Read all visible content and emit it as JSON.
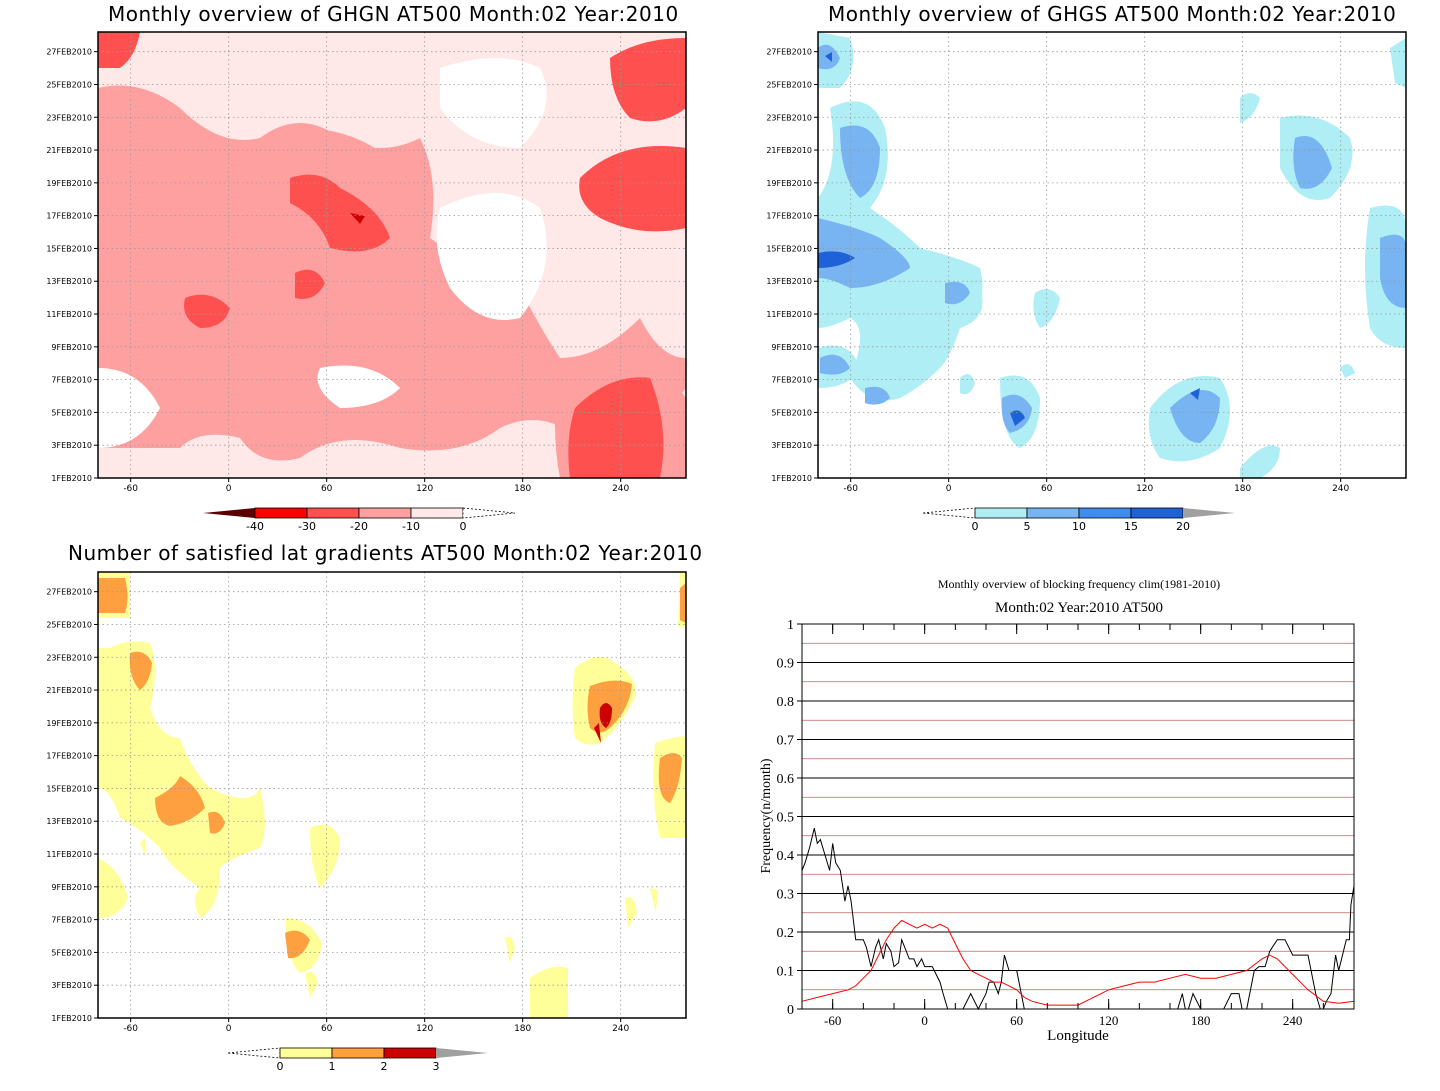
{
  "chart_data": [
    {
      "type": "heatmap",
      "title": "Monthly overview of GHGN AT500 Month:02 Year:2010",
      "x_ticks": [
        "-60",
        "0",
        "60",
        "120",
        "180",
        "240"
      ],
      "x_tick_values": [
        -60,
        0,
        60,
        120,
        180,
        240
      ],
      "xlim": [
        -80,
        280
      ],
      "y_ticks": [
        "1FEB2010",
        "3FEB2010",
        "5FEB2010",
        "7FEB2010",
        "9FEB2010",
        "11FEB2010",
        "13FEB2010",
        "15FEB2010",
        "17FEB2010",
        "19FEB2010",
        "21FEB2010",
        "23FEB2010",
        "25FEB2010",
        "27FEB2010"
      ],
      "ylim": [
        1,
        28.2
      ],
      "grid": true,
      "colorbar": {
        "levels": [
          "-40",
          "-30",
          "-20",
          "-10",
          "0"
        ],
        "colors": [
          "#5a0000",
          "#ff0000",
          "#ff5050",
          "#ffa0a0",
          "#ffe8e8",
          "#ffffff"
        ],
        "extend_low": true,
        "extend_high": true
      }
    },
    {
      "type": "heatmap",
      "title": "Monthly overview of GHGS AT500 Month:02 Year:2010",
      "x_ticks": [
        "-60",
        "0",
        "60",
        "120",
        "180",
        "240"
      ],
      "x_tick_values": [
        -60,
        0,
        60,
        120,
        180,
        240
      ],
      "xlim": [
        -80,
        280
      ],
      "y_ticks": [
        "1FEB2010",
        "3FEB2010",
        "5FEB2010",
        "7FEB2010",
        "9FEB2010",
        "11FEB2010",
        "13FEB2010",
        "15FEB2010",
        "17FEB2010",
        "19FEB2010",
        "21FEB2010",
        "23FEB2010",
        "25FEB2010",
        "27FEB2010"
      ],
      "ylim": [
        1,
        28.2
      ],
      "grid": true,
      "colorbar": {
        "levels": [
          "0",
          "5",
          "10",
          "15",
          "20"
        ],
        "colors": [
          "#ffffff",
          "#b0eef6",
          "#78b4f2",
          "#3f8cf0",
          "#1f62d8",
          "#a0a0a0"
        ],
        "extend_low": true,
        "extend_high": true
      }
    },
    {
      "type": "heatmap",
      "title": "Number of satisfied lat gradients AT500 Month:02 Year:2010",
      "x_ticks": [
        "-60",
        "0",
        "60",
        "120",
        "180",
        "240"
      ],
      "x_tick_values": [
        -60,
        0,
        60,
        120,
        180,
        240
      ],
      "xlim": [
        -80,
        280
      ],
      "y_ticks": [
        "1FEB2010",
        "3FEB2010",
        "5FEB2010",
        "7FEB2010",
        "9FEB2010",
        "11FEB2010",
        "13FEB2010",
        "15FEB2010",
        "17FEB2010",
        "19FEB2010",
        "21FEB2010",
        "23FEB2010",
        "25FEB2010",
        "27FEB2010"
      ],
      "ylim": [
        1,
        28.2
      ],
      "grid": true,
      "colorbar": {
        "levels": [
          "0",
          "1",
          "2",
          "3"
        ],
        "colors": [
          "#ffffff",
          "#ffff99",
          "#ffa040",
          "#cc0000",
          "#a0a0a0"
        ],
        "extend_low": true,
        "extend_high": true
      }
    },
    {
      "type": "line",
      "title": "Monthly overview of blocking frequency clim(1981-2010)",
      "subtitle": "Month:02 Year:2010  AT500",
      "xlabel": "Longitude",
      "ylabel": "Frequency(n/month)",
      "xlim": [
        -80,
        280
      ],
      "ylim": [
        0,
        1
      ],
      "x_ticks": [
        "-60",
        "0",
        "60",
        "120",
        "180",
        "240"
      ],
      "x_tick_values": [
        -60,
        0,
        60,
        120,
        180,
        240
      ],
      "y_ticks": [
        "0",
        "0.1",
        "0.2",
        "0.3",
        "0.4",
        "0.5",
        "0.6",
        "0.7",
        "0.8",
        "0.9",
        "1"
      ],
      "grid": true,
      "series": [
        {
          "color": "#000000",
          "x": [
            -80,
            -78,
            -75,
            -72,
            -70,
            -68,
            -65,
            -62,
            -60,
            -58,
            -55,
            -52,
            -50,
            -48,
            -45,
            -42,
            -40,
            -38,
            -35,
            -32,
            -30,
            -27,
            -25,
            -22,
            -20,
            -17,
            -15,
            -12,
            -10,
            -7,
            -5,
            -2,
            0,
            5,
            10,
            12,
            15,
            18,
            20,
            25,
            30,
            35,
            40,
            42,
            45,
            48,
            50,
            52,
            55,
            60,
            65,
            68,
            70,
            75,
            100,
            150,
            165,
            168,
            170,
            172,
            175,
            180,
            185,
            190,
            195,
            200,
            205,
            207,
            210,
            215,
            218,
            222,
            225,
            230,
            235,
            240,
            245,
            250,
            255,
            258,
            260,
            262,
            265,
            268,
            270,
            275,
            277,
            278,
            280
          ],
          "y": [
            0.36,
            0.38,
            0.42,
            0.47,
            0.43,
            0.44,
            0.4,
            0.36,
            0.43,
            0.38,
            0.36,
            0.28,
            0.32,
            0.28,
            0.18,
            0.18,
            0.18,
            0.16,
            0.11,
            0.16,
            0.18,
            0.13,
            0.17,
            0.15,
            0.11,
            0.12,
            0.18,
            0.15,
            0.13,
            0.13,
            0.11,
            0.13,
            0.11,
            0.11,
            0.07,
            0.04,
            0.0,
            0.0,
            0.0,
            0.0,
            0.04,
            0.0,
            0.04,
            0.07,
            0.07,
            0.04,
            0.07,
            0.14,
            0.1,
            0.1,
            0.0,
            0.0,
            0.0,
            0.0,
            0.0,
            0.0,
            0.0,
            0.04,
            0.0,
            0.0,
            0.04,
            0.0,
            0.0,
            0.0,
            0.0,
            0.04,
            0.04,
            0.0,
            0.0,
            0.1,
            0.11,
            0.11,
            0.15,
            0.18,
            0.18,
            0.14,
            0.14,
            0.14,
            0.04,
            0.0,
            0.0,
            0.02,
            0.04,
            0.14,
            0.1,
            0.18,
            0.18,
            0.27,
            0.32
          ]
        },
        {
          "color": "#ff0000",
          "x": [
            -80,
            -70,
            -60,
            -50,
            -45,
            -40,
            -35,
            -30,
            -25,
            -20,
            -15,
            -10,
            -5,
            0,
            5,
            10,
            15,
            20,
            25,
            30,
            35,
            40,
            45,
            50,
            55,
            60,
            65,
            70,
            80,
            90,
            100,
            110,
            120,
            130,
            140,
            150,
            160,
            170,
            180,
            190,
            200,
            210,
            220,
            225,
            230,
            240,
            250,
            260,
            270,
            280
          ],
          "y": [
            0.02,
            0.03,
            0.04,
            0.05,
            0.06,
            0.08,
            0.1,
            0.14,
            0.18,
            0.21,
            0.23,
            0.22,
            0.21,
            0.22,
            0.21,
            0.22,
            0.21,
            0.17,
            0.13,
            0.1,
            0.09,
            0.08,
            0.07,
            0.07,
            0.06,
            0.05,
            0.03,
            0.02,
            0.01,
            0.01,
            0.01,
            0.03,
            0.05,
            0.06,
            0.07,
            0.07,
            0.08,
            0.09,
            0.08,
            0.08,
            0.09,
            0.1,
            0.13,
            0.14,
            0.13,
            0.09,
            0.05,
            0.02,
            0.015,
            0.02
          ]
        }
      ]
    }
  ]
}
